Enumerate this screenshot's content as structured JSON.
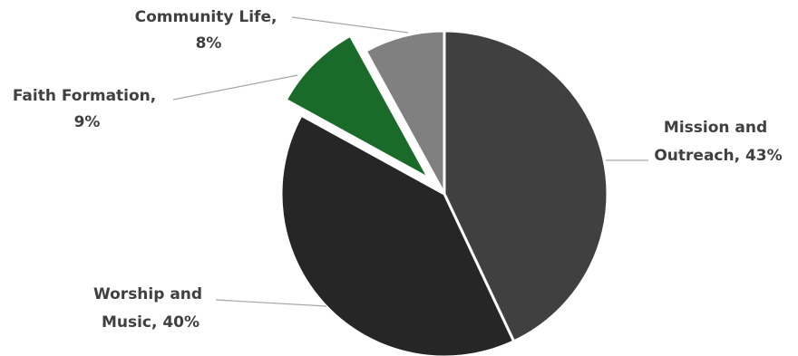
{
  "chart_data": {
    "type": "pie",
    "categories": [
      "Mission and Outreach",
      "Worship and Music",
      "Faith Formation",
      "Community Life"
    ],
    "values": [
      43,
      40,
      9,
      8
    ],
    "labels": [
      {
        "line1": "Mission and",
        "line2": "Outreach, 43%"
      },
      {
        "line1": "Worship and",
        "line2": "Music, 40%"
      },
      {
        "line1": "Faith Formation,",
        "line2": "9%"
      },
      {
        "line1": "Community Life,",
        "line2": "8%"
      }
    ],
    "colors": [
      "#404040",
      "#262626",
      "#1a6b2a",
      "#808080"
    ],
    "exploded": [
      false,
      false,
      true,
      false
    ],
    "title": "",
    "legend": "none"
  }
}
